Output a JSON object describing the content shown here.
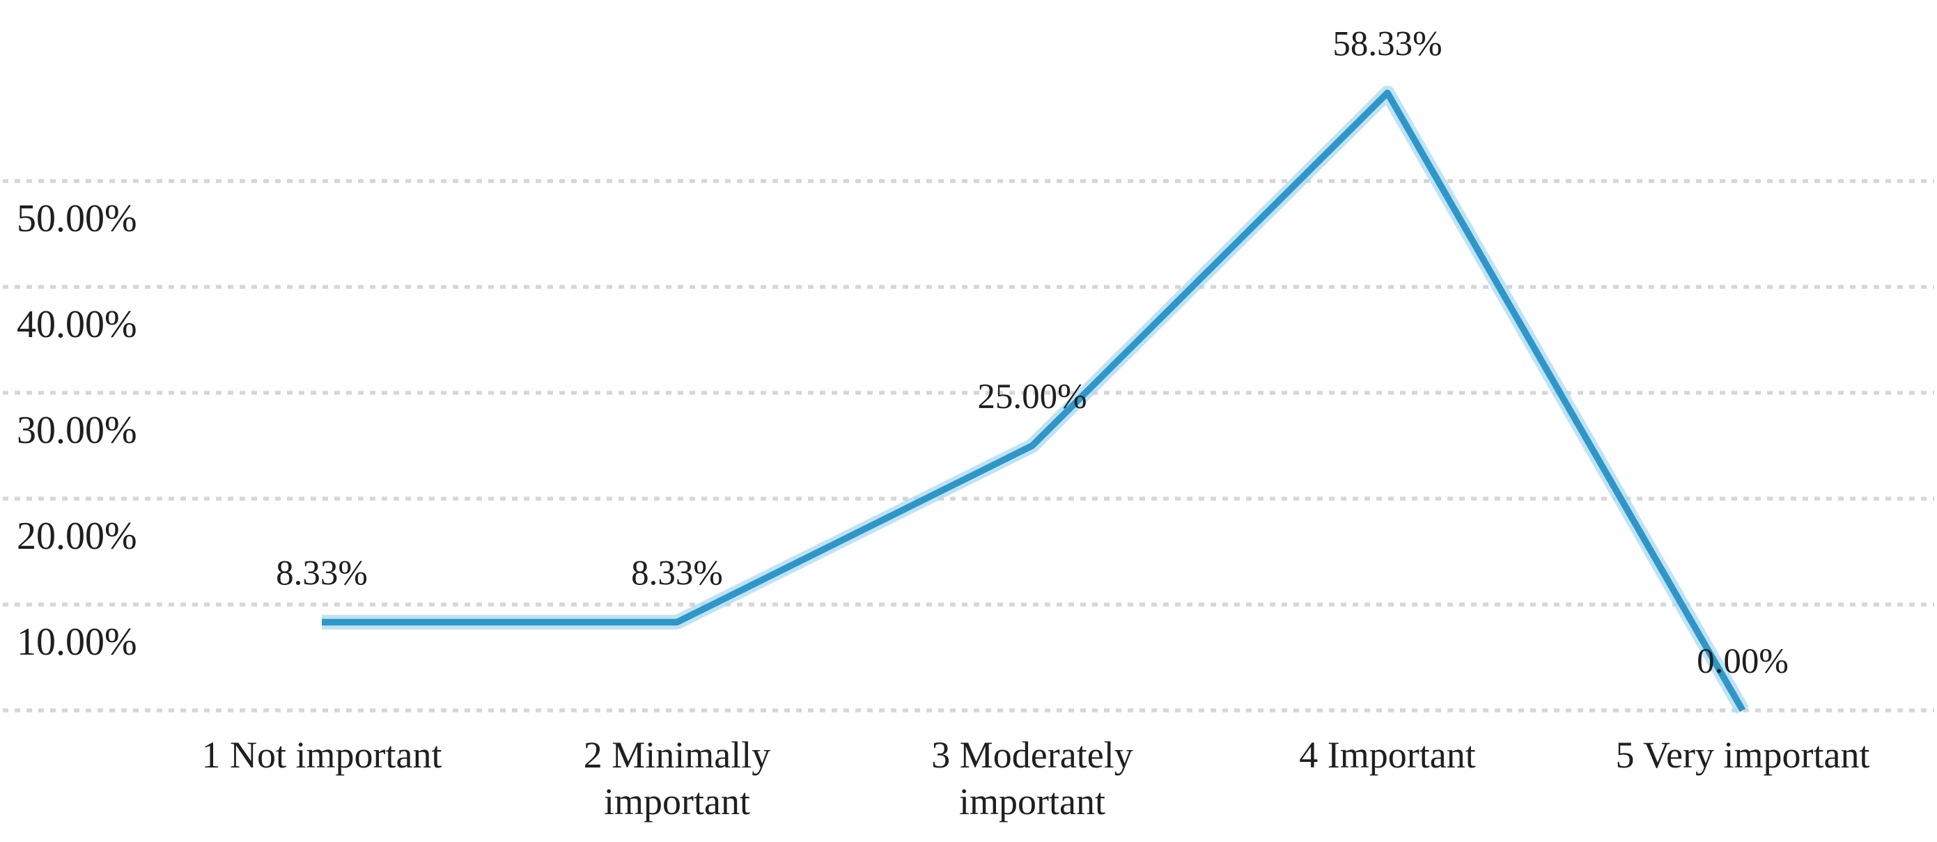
{
  "chart_data": {
    "type": "line",
    "title": "",
    "xlabel": "",
    "ylabel": "",
    "categories": [
      "1 Not important",
      "2 Minimally important",
      "3 Moderately important",
      "4 Important",
      "5 Very important"
    ],
    "category_lines": [
      [
        "1 Not important"
      ],
      [
        "2 Minimally",
        "important"
      ],
      [
        "3 Moderately",
        "important"
      ],
      [
        "4 Important"
      ],
      [
        "5 Very important"
      ]
    ],
    "values": [
      8.33,
      8.33,
      25.0,
      58.33,
      0.0
    ],
    "data_labels": [
      "8.33%",
      "8.33%",
      "25.00%",
      "58.33%",
      "0.00%"
    ],
    "y_ticks": [
      {
        "value": 50,
        "label": "50.00%"
      },
      {
        "value": 40,
        "label": "40.00%"
      },
      {
        "value": 30,
        "label": "30.00%"
      },
      {
        "value": 20,
        "label": "20.00%"
      },
      {
        "value": 10,
        "label": "10.00%"
      }
    ],
    "ylim": [
      0,
      60
    ],
    "gridline_values": [
      0,
      10,
      20,
      30,
      40,
      50
    ],
    "grid": "horizontal-dotted",
    "legend_position": "none",
    "colors": {
      "series": "#2E96C9",
      "series_halo": "#ABD9F0",
      "gridline": "#D6D6D6",
      "text": "#1F1F1F",
      "background": "#FFFFFF"
    }
  }
}
